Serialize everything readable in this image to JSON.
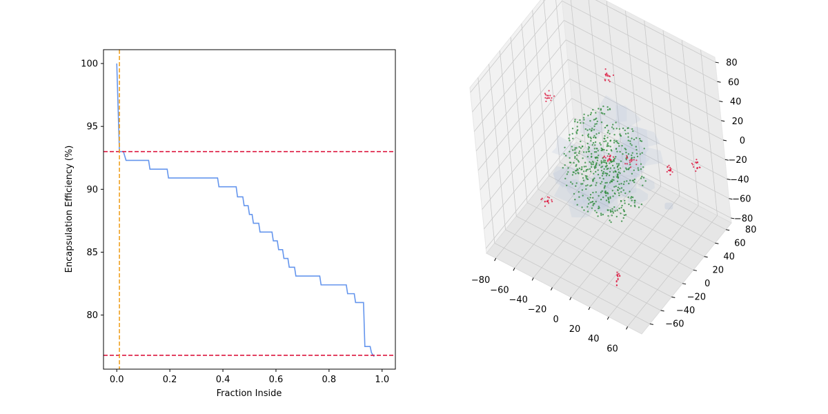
{
  "chart_data": [
    {
      "type": "line",
      "xlabel": "Fraction Inside",
      "ylabel": "Encapsulation Efficiency (%)",
      "xlim": [
        -0.05,
        1.05
      ],
      "ylim": [
        75.7,
        101.1
      ],
      "xticks": [
        0.0,
        0.2,
        0.4,
        0.6,
        0.8,
        1.0
      ],
      "xtick_labels": [
        "0.0",
        "0.2",
        "0.4",
        "0.6",
        "0.8",
        "1.0"
      ],
      "yticks": [
        80,
        85,
        90,
        95,
        100
      ],
      "ytick_labels": [
        "80",
        "85",
        "90",
        "95",
        "100"
      ],
      "grid": false,
      "series": [
        {
          "color": "#6495ed",
          "x": [
            0.0,
            0.01,
            0.025,
            0.035,
            0.12,
            0.125,
            0.19,
            0.195,
            0.38,
            0.385,
            0.45,
            0.455,
            0.475,
            0.48,
            0.495,
            0.5,
            0.51,
            0.515,
            0.535,
            0.54,
            0.585,
            0.59,
            0.605,
            0.61,
            0.625,
            0.63,
            0.645,
            0.65,
            0.67,
            0.675,
            0.765,
            0.77,
            0.865,
            0.87,
            0.895,
            0.9,
            0.915,
            0.92,
            0.93,
            0.935,
            0.955,
            0.96,
            0.97
          ],
          "y": [
            100.0,
            93.0,
            93.0,
            92.3,
            92.3,
            91.6,
            91.6,
            90.9,
            90.9,
            90.2,
            90.2,
            89.4,
            89.4,
            88.7,
            88.7,
            88.0,
            88.0,
            87.3,
            87.3,
            86.6,
            86.6,
            85.9,
            85.9,
            85.2,
            85.2,
            84.5,
            84.5,
            83.8,
            83.8,
            83.1,
            83.1,
            82.4,
            82.4,
            81.7,
            81.7,
            81.0,
            81.0,
            81.0,
            81.0,
            77.5,
            77.5,
            77.0,
            76.7
          ]
        }
      ],
      "hlines": [
        {
          "y": 93.0,
          "color": "#dc143c",
          "style": "dashed"
        },
        {
          "y": 76.8,
          "color": "#dc143c",
          "style": "dashed"
        }
      ],
      "vlines": [
        {
          "x": 0.01,
          "color": "#f0a020",
          "style": "dashed"
        }
      ]
    },
    {
      "type": "scatter3d",
      "xlim": [
        -90,
        75
      ],
      "ylim": [
        -75,
        90
      ],
      "zlim": [
        -85,
        85
      ],
      "xticks": [
        -80,
        -60,
        -40,
        -20,
        0,
        20,
        40,
        60
      ],
      "xtick_labels": [
        "−80",
        "−60",
        "−40",
        "−20",
        "0",
        "20",
        "40",
        "60"
      ],
      "yticks": [
        -60,
        -40,
        -20,
        0,
        20,
        40,
        60,
        80
      ],
      "ytick_labels": [
        "−60",
        "−40",
        "−20",
        "0",
        "20",
        "40",
        "60",
        "80"
      ],
      "zticks": [
        -80,
        -60,
        -40,
        -20,
        0,
        20,
        40,
        60,
        80
      ],
      "ztick_labels": [
        "−80",
        "−60",
        "−40",
        "−20",
        "0",
        "20",
        "40",
        "60",
        "80"
      ],
      "grid": true,
      "surface_color": "#9fb3d4",
      "inside_color": "#2e8b3c",
      "outside_color": "#dc143c",
      "inside_cluster": {
        "center": [
          0,
          0,
          0
        ],
        "radius": 42,
        "count": 520
      },
      "outside_clusters": [
        {
          "center": [
            -20,
            50,
            45
          ]
        },
        {
          "center": [
            -70,
            20,
            20
          ]
        },
        {
          "center": [
            20,
            -20,
            30
          ]
        },
        {
          "center": [
            60,
            20,
            10
          ]
        },
        {
          "center": [
            70,
            50,
            0
          ]
        },
        {
          "center": [
            -40,
            -40,
            -30
          ]
        },
        {
          "center": [
            30,
            -40,
            -75
          ]
        },
        {
          "center": [
            10,
            30,
            -10
          ]
        }
      ]
    }
  ]
}
